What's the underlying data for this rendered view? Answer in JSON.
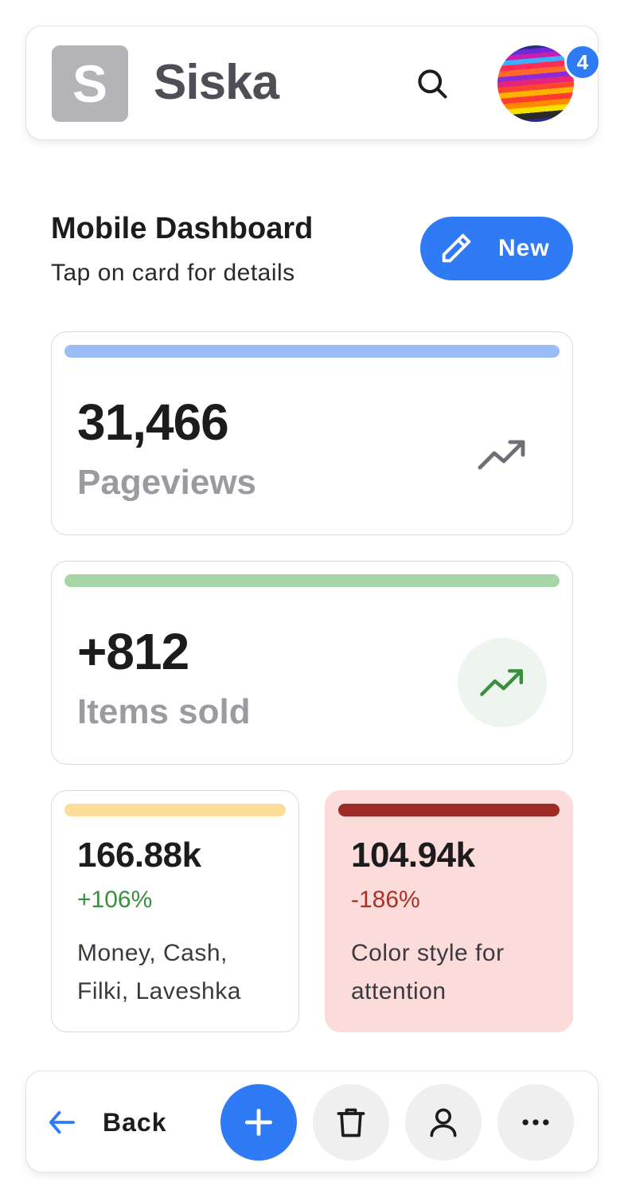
{
  "header": {
    "logo_letter": "S",
    "brand": "Siska",
    "notification_count": "4",
    "icons": {
      "search": "search-icon",
      "avatar": "avatar"
    }
  },
  "page": {
    "title": "Mobile Dashboard",
    "subtitle": "Tap on card for details",
    "new_button_label": "New"
  },
  "cards": [
    {
      "value": "31,466",
      "label": "Pageviews",
      "bar_color": "#9bbdf7",
      "icon": "trend-up-icon"
    },
    {
      "value": "+812",
      "label": "Items sold",
      "bar_color": "#a8d5a6",
      "icon": "trend-up-icon",
      "icon_color": "#3a8f3f"
    }
  ],
  "small_cards": [
    {
      "value": "166.88k",
      "delta": "+106%",
      "delta_color": "#3a8f3f",
      "description": "Money, Cash, Filki, Laveshka",
      "bar_color": "#fddd98"
    },
    {
      "value": "104.94k",
      "delta": "-186%",
      "delta_color": "#a83227",
      "description": "Color style for attention",
      "bar_color": "#9c2a25",
      "background": "#fcdcdb"
    }
  ],
  "bottom_nav": {
    "back_label": "Back",
    "buttons": [
      "add",
      "delete",
      "profile",
      "more"
    ]
  },
  "colors": {
    "accent": "#2f7bf5",
    "positive": "#3a8f3f",
    "negative": "#a83227"
  }
}
